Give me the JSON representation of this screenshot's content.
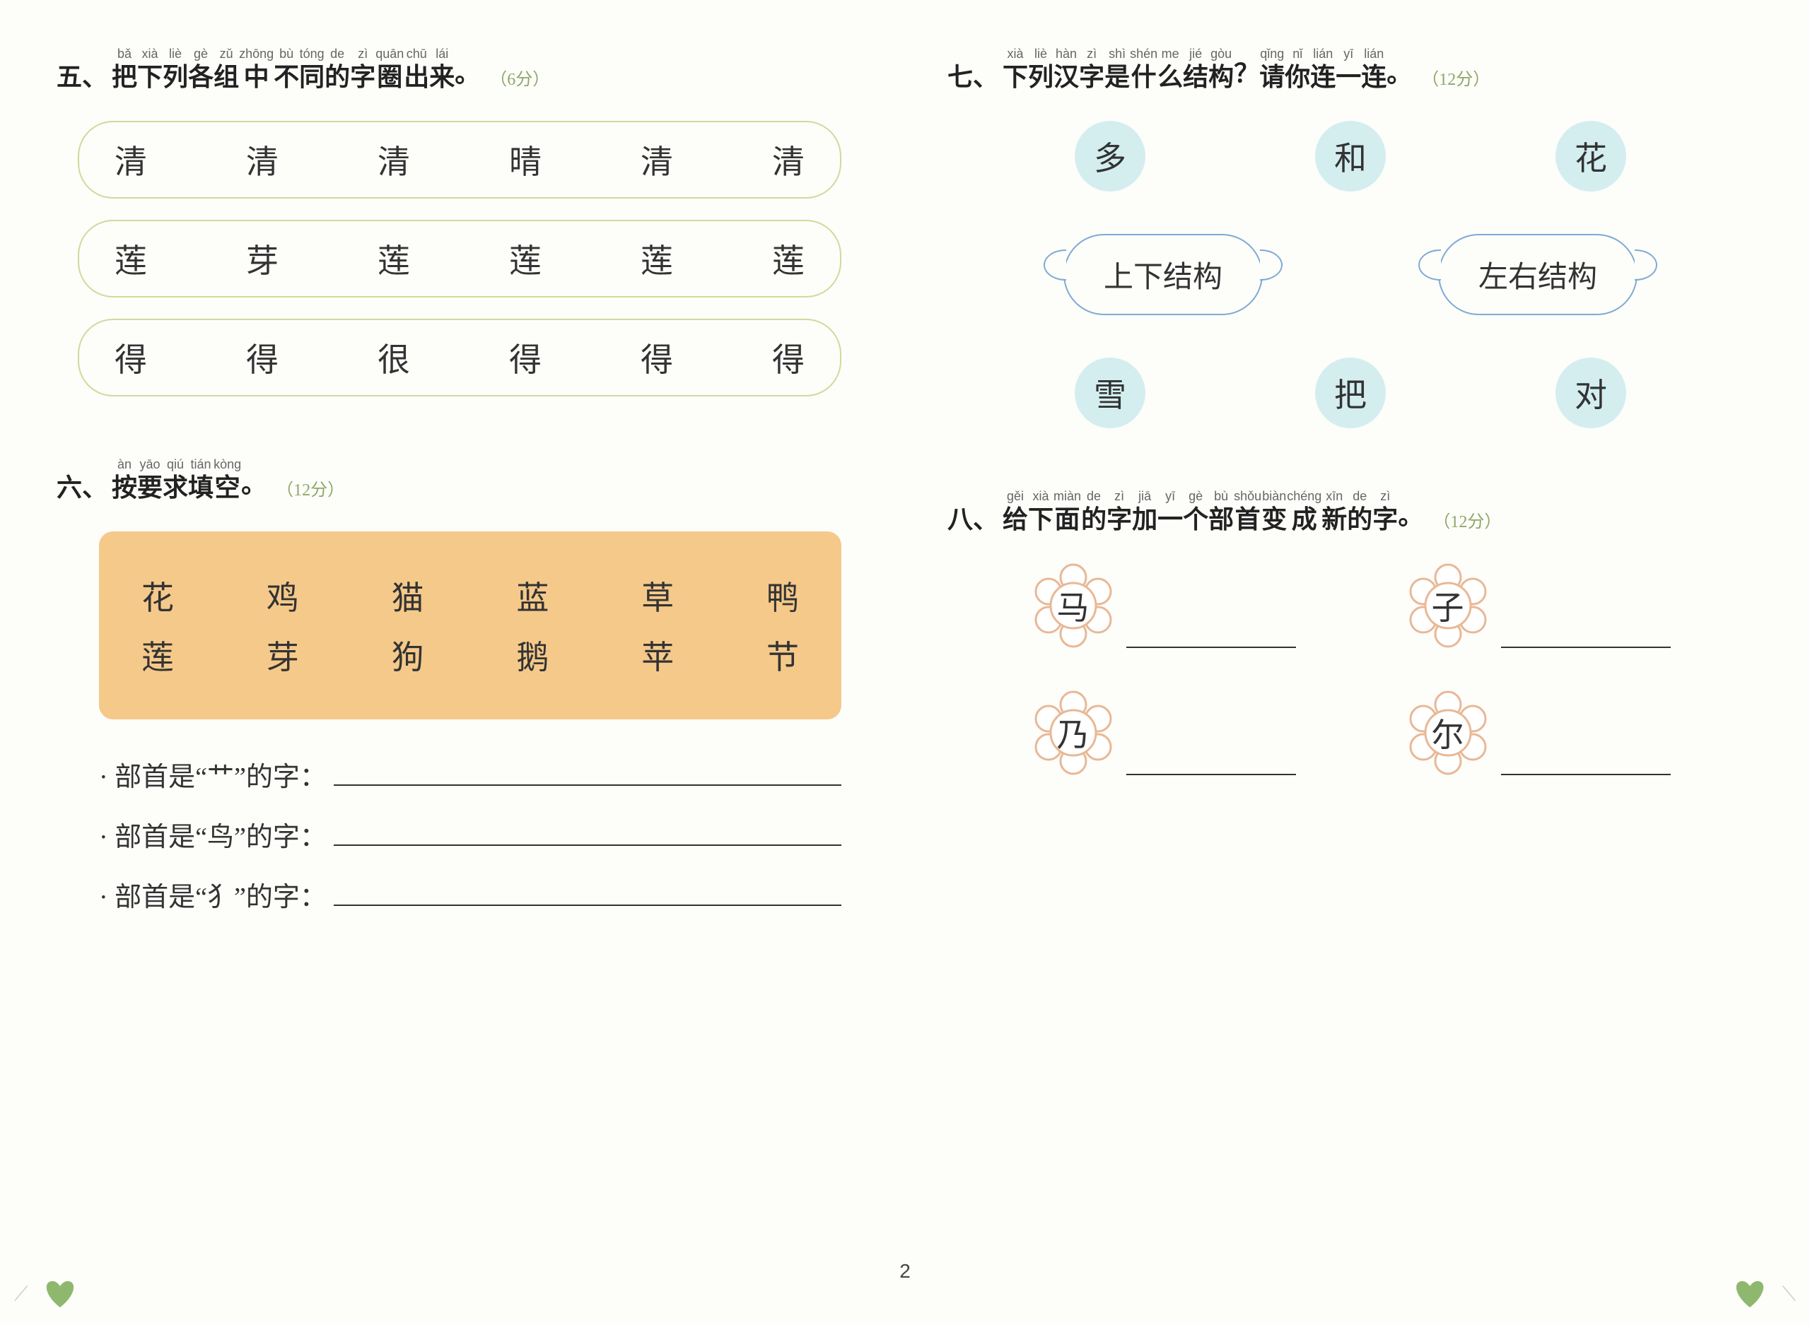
{
  "page_number": "2",
  "colors": {
    "header_text": "#222222",
    "pinyin_text": "#666666",
    "points_text": "#8fa868",
    "pill_border": "#d4d89a",
    "orange_bg": "#f5c98a",
    "circle_bg": "#d4eef0",
    "cloud_border": "#7faad4",
    "flower_stroke": "#e8b896",
    "flower_fill": "#ffffff",
    "heart": "#8fb86f",
    "background": "#fdfdfa"
  },
  "q5": {
    "number": "五、",
    "title_chars": [
      "把",
      "下",
      "列",
      "各",
      "组",
      "中",
      "不",
      "同",
      "的",
      "字",
      "圈",
      "出",
      "来",
      "。"
    ],
    "title_pinyin": [
      "bǎ",
      "xià",
      "liè",
      "gè",
      "zǔ",
      "zhōng",
      "bù",
      "tóng",
      "de",
      "zì",
      "quān",
      "chū",
      "lái",
      ""
    ],
    "points": "（6分）",
    "rows": [
      [
        "清",
        "清",
        "清",
        "晴",
        "清",
        "清"
      ],
      [
        "莲",
        "芽",
        "莲",
        "莲",
        "莲",
        "莲"
      ],
      [
        "得",
        "得",
        "很",
        "得",
        "得",
        "得"
      ]
    ]
  },
  "q6": {
    "number": "六、",
    "title_chars": [
      "按",
      "要",
      "求",
      "填",
      "空",
      "。"
    ],
    "title_pinyin": [
      "àn",
      "yāo",
      "qiú",
      "tián",
      "kòng",
      ""
    ],
    "points": "（12分）",
    "box_rows": [
      [
        "花",
        "鸡",
        "猫",
        "蓝",
        "草",
        "鸭"
      ],
      [
        "莲",
        "芽",
        "狗",
        "鹅",
        "苹",
        "节"
      ]
    ],
    "prompts": [
      "· 部首是“艹”的字：",
      "· 部首是“鸟”的字：",
      "· 部首是“犭”的字："
    ]
  },
  "q7": {
    "number": "七、",
    "title_chars": [
      "下",
      "列",
      "汉",
      "字",
      "是",
      "什",
      "么",
      "结",
      "构",
      "？",
      "请",
      "你",
      "连",
      "一",
      "连",
      "。"
    ],
    "title_pinyin": [
      "xià",
      "liè",
      "hàn",
      "zì",
      "shì",
      "shén",
      "me",
      "jié",
      "gòu",
      "",
      "qǐng",
      "nǐ",
      "lián",
      "yī",
      "lián",
      ""
    ],
    "points": "（12分）",
    "top_circles": [
      "多",
      "和",
      "花"
    ],
    "clouds": [
      "上下结构",
      "左右结构"
    ],
    "bottom_circles": [
      "雪",
      "把",
      "对"
    ]
  },
  "q8": {
    "number": "八、",
    "title_chars": [
      "给",
      "下",
      "面",
      "的",
      "字",
      "加",
      "一",
      "个",
      "部",
      "首",
      "变",
      "成",
      "新",
      "的",
      "字",
      "。"
    ],
    "title_pinyin": [
      "gěi",
      "xià",
      "miàn",
      "de",
      "zì",
      "jiā",
      "yī",
      "gè",
      "bù",
      "shǒu",
      "biàn",
      "chéng",
      "xīn",
      "de",
      "zì",
      ""
    ],
    "points": "（12分）",
    "flowers": [
      [
        "马",
        "子"
      ],
      [
        "乃",
        "尔"
      ]
    ]
  }
}
